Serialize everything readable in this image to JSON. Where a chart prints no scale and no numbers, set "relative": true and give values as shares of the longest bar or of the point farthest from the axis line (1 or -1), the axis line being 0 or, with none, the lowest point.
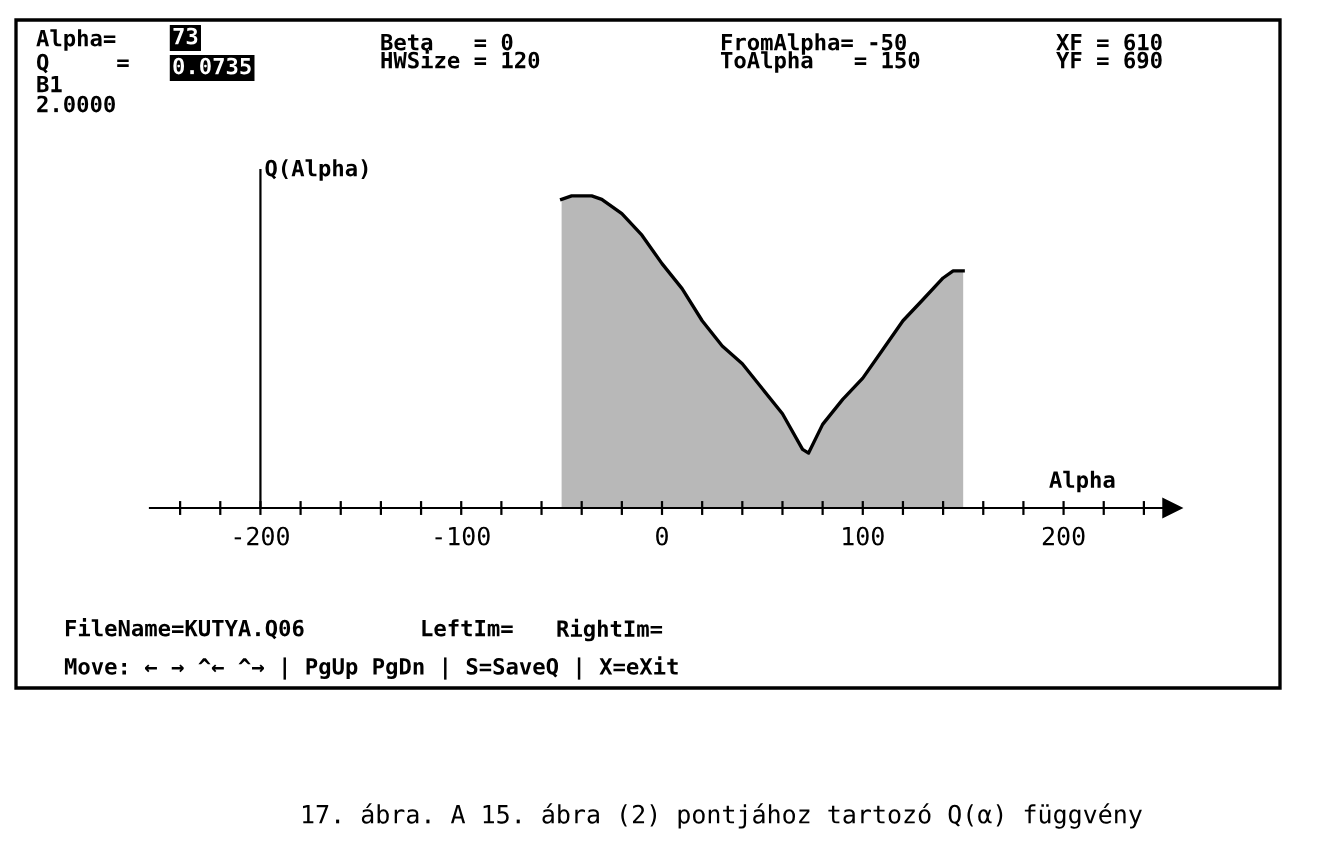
{
  "chart_data": {
    "type": "area",
    "relative": true,
    "xlabel": "Alpha",
    "ylabel": "Q(Alpha)",
    "x": [
      -50,
      -45,
      -35,
      -30,
      -20,
      -10,
      0,
      10,
      20,
      30,
      40,
      50,
      60,
      70,
      73,
      80,
      90,
      100,
      110,
      120,
      130,
      140,
      145,
      150
    ],
    "series": [
      {
        "color": "#000000",
        "values": [
          0.989,
          1.0,
          1.0,
          0.989,
          0.943,
          0.874,
          0.783,
          0.703,
          0.6,
          0.519,
          0.462,
          0.382,
          0.302,
          0.188,
          0.176,
          0.268,
          0.348,
          0.416,
          0.508,
          0.6,
          0.668,
          0.737,
          0.76,
          0.76
        ]
      }
    ],
    "xlim": [
      -255,
      254
    ],
    "xticks": [
      {
        "value": -240,
        "label": null
      },
      {
        "value": -220,
        "label": null
      },
      -200,
      {
        "value": -180,
        "label": null
      },
      {
        "value": -160,
        "label": null
      },
      {
        "value": -140,
        "label": null
      },
      {
        "value": -120,
        "label": null
      },
      -100,
      {
        "value": -80,
        "label": null
      },
      {
        "value": -60,
        "label": null
      },
      {
        "value": -40,
        "label": null
      },
      {
        "value": -20,
        "label": null
      },
      0,
      {
        "value": 20,
        "label": null
      },
      {
        "value": 40,
        "label": null
      },
      {
        "value": 60,
        "label": null
      },
      {
        "value": 80,
        "label": null
      },
      100,
      {
        "value": 120,
        "label": null
      },
      {
        "value": 140,
        "label": null
      },
      {
        "value": 160,
        "label": null
      },
      {
        "value": 180,
        "label": null
      },
      200,
      {
        "value": 220,
        "label": null
      },
      {
        "value": 240,
        "label": null
      }
    ],
    "annotations": [
      "Alpha=",
      "73",
      "Q     =",
      "0.0735",
      "B1",
      "2.0000",
      "Beta   = 0",
      "HWSize = 120",
      "FromAlpha= -50",
      "ToAlpha   = 150",
      "XF = 610",
      "YF = 690",
      "FileName=KUTYA.Q06",
      "LeftIm=",
      "RightIm=",
      "Move: ← → ^← ^→ | PgUp PgDn | S=SaveQ | X=eXit",
      "17. ábra. A 15. ábra (2) pontjához tartozó Q(α) függvény"
    ]
  }
}
